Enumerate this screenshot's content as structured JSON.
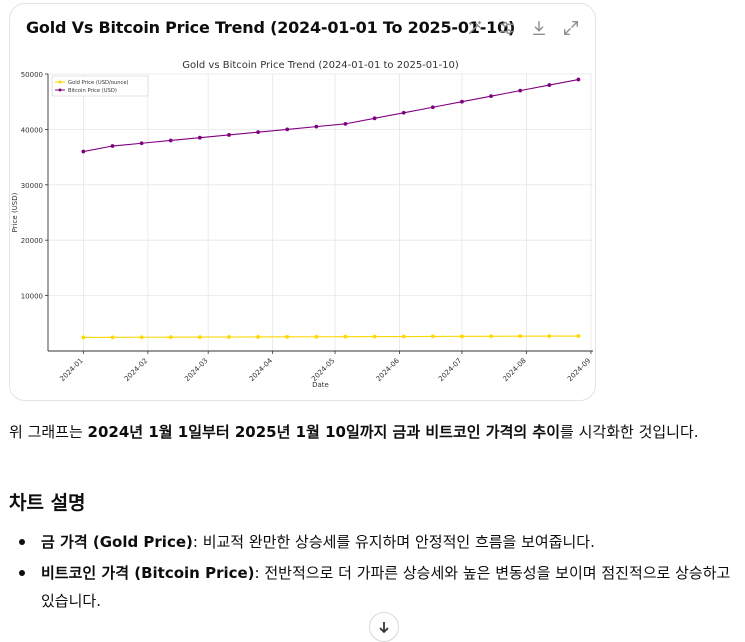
{
  "card": {
    "title": "Gold Vs Bitcoin Price Trend (2024-01-01 To 2025-01-10)",
    "tools": [
      "magic-wand-icon",
      "sliders-icon",
      "download-icon",
      "expand-icon"
    ]
  },
  "chart_data": {
    "type": "line",
    "title": "Gold vs Bitcoin Price Trend (2024-01-01 to 2025-01-10)",
    "xlabel": "Date",
    "ylabel": "Price (USD)",
    "x_tick_labels": [
      "2024-01",
      "2024-02",
      "2024-03",
      "2024-04",
      "2024-05",
      "2024-06",
      "2024-07",
      "2024-08",
      "2024-09"
    ],
    "x_range": [
      "2023-12-15",
      "2024-09-02"
    ],
    "y_ticks": [
      10000,
      20000,
      30000,
      40000,
      50000
    ],
    "ylim": [
      0,
      50000
    ],
    "legend": "top-left",
    "x": [
      "2024-01-01",
      "2024-01-15",
      "2024-01-29",
      "2024-02-12",
      "2024-02-26",
      "2024-03-11",
      "2024-03-25",
      "2024-04-08",
      "2024-04-22",
      "2024-05-06",
      "2024-05-20",
      "2024-06-03",
      "2024-06-17",
      "2024-07-01",
      "2024-07-15",
      "2024-07-29",
      "2024-08-12",
      "2024-08-26"
    ],
    "series": [
      {
        "name": "Gold Price (USD/ounce)",
        "color": "#FFD700",
        "values": [
          2450,
          2465,
          2480,
          2495,
          2510,
          2525,
          2540,
          2555,
          2570,
          2585,
          2600,
          2615,
          2630,
          2645,
          2660,
          2675,
          2690,
          2705
        ]
      },
      {
        "name": "Bitcoin Price (USD)",
        "color": "#800080",
        "values": [
          36000,
          37000,
          37500,
          38000,
          38500,
          39000,
          39500,
          40000,
          40500,
          41000,
          42000,
          43000,
          44000,
          45000,
          46000,
          47000,
          48000,
          49000
        ]
      }
    ]
  },
  "text": {
    "para_prefix": "위 그래프는 ",
    "para_bold": "2024년 1월 1일부터 2025년 1월 10일까지 금과 비트코인 가격의 추이",
    "para_suffix": "를 시각화한 것입니다.",
    "heading": "차트 설명",
    "bullets": [
      {
        "bold": "금 가격 (Gold Price)",
        "rest": ": 비교적 완만한 상승세를 유지하며 안정적인 흐름을 보여줍니다."
      },
      {
        "bold": "비트코인 가격 (Bitcoin Price)",
        "rest": ": 전반적으로 더 가파른 상승세와 높은 변동성을 보이며 점진적으로 상승하고 있습니다."
      }
    ]
  }
}
